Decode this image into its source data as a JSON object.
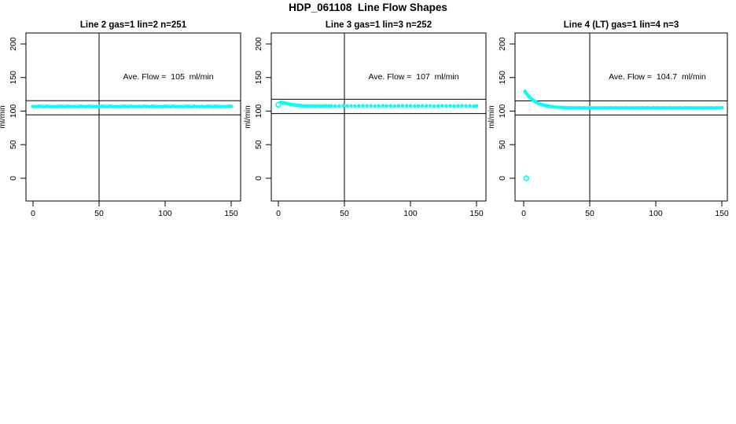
{
  "figure": {
    "title": "HDP_061108  Line Flow Shapes",
    "background": "#ffffff",
    "axis_color": "#000000",
    "accent_color": "#00ffff"
  },
  "chart_data": [
    {
      "type": "scatter",
      "title": "Line 2 gas=1 lin=2 n=251",
      "annotation": "Ave. Flow =  105  ml/min",
      "ave_flow": 105,
      "xlabel": "",
      "ylabel": "ml/min",
      "xlim": [
        0,
        157
      ],
      "ylim": [
        0,
        215
      ],
      "xticks": [
        0,
        50,
        100,
        150
      ],
      "yticks": [
        0,
        50,
        100,
        150,
        200
      ],
      "grid": false,
      "ref_line_x": 50,
      "ref_lines_y": [
        115.5,
        94.5
      ],
      "series": [
        {
          "name": "flow",
          "color": "#00ffff",
          "marker": "dot",
          "points": [
            [
              0,
              107
            ],
            [
              2,
              106.6
            ],
            [
              4,
              107.3
            ],
            [
              6,
              107.1
            ],
            [
              8,
              106.7
            ],
            [
              10,
              107.4
            ],
            [
              12,
              107
            ],
            [
              14,
              106.8
            ],
            [
              16,
              107
            ],
            [
              18,
              106.6
            ],
            [
              20,
              107.3
            ],
            [
              22,
              107.1
            ],
            [
              24,
              106.7
            ],
            [
              26,
              107.4
            ],
            [
              28,
              107
            ],
            [
              30,
              106.8
            ],
            [
              32,
              107
            ],
            [
              34,
              106.6
            ],
            [
              36,
              107.3
            ],
            [
              38,
              107.1
            ],
            [
              40,
              106.7
            ],
            [
              42,
              107.4
            ],
            [
              44,
              107
            ],
            [
              46,
              106.8
            ],
            [
              48,
              107
            ],
            [
              50,
              106.6
            ],
            [
              52,
              107.3
            ],
            [
              54,
              107.1
            ],
            [
              56,
              106.7
            ],
            [
              58,
              107.4
            ],
            [
              60,
              107
            ],
            [
              62,
              106.8
            ],
            [
              64,
              107
            ],
            [
              66,
              106.6
            ],
            [
              68,
              107.3
            ],
            [
              70,
              107.1
            ],
            [
              72,
              106.7
            ],
            [
              74,
              107.4
            ],
            [
              76,
              107
            ],
            [
              78,
              106.8
            ],
            [
              80,
              107
            ],
            [
              82,
              106.6
            ],
            [
              84,
              107.3
            ],
            [
              86,
              107.1
            ],
            [
              88,
              106.7
            ],
            [
              90,
              107.4
            ],
            [
              92,
              107
            ],
            [
              94,
              106.8
            ],
            [
              96,
              107
            ],
            [
              98,
              106.6
            ],
            [
              100,
              107.3
            ],
            [
              102,
              107.1
            ],
            [
              104,
              106.7
            ],
            [
              106,
              107.4
            ],
            [
              108,
              107
            ],
            [
              110,
              106.8
            ],
            [
              112,
              107
            ],
            [
              114,
              106.6
            ],
            [
              116,
              107.3
            ],
            [
              118,
              107.1
            ],
            [
              120,
              106.7
            ],
            [
              122,
              107.4
            ],
            [
              124,
              107
            ],
            [
              126,
              106.8
            ],
            [
              128,
              107
            ],
            [
              130,
              106.6
            ],
            [
              132,
              107.3
            ],
            [
              134,
              107.1
            ],
            [
              136,
              106.7
            ],
            [
              138,
              107.4
            ],
            [
              140,
              107
            ],
            [
              142,
              106.8
            ],
            [
              144,
              107
            ],
            [
              146,
              106.6
            ],
            [
              148,
              107.3
            ],
            [
              150,
              107.1
            ]
          ],
          "open_points": []
        }
      ]
    },
    {
      "type": "scatter",
      "title": "Line 3 gas=1 lin=3 n=252",
      "annotation": "Ave. Flow =  107  ml/min",
      "ave_flow": 107,
      "xlabel": "",
      "ylabel": "ml/min",
      "xlim": [
        0,
        157
      ],
      "ylim": [
        0,
        215
      ],
      "xticks": [
        0,
        50,
        100,
        150
      ],
      "yticks": [
        0,
        50,
        100,
        150,
        200
      ],
      "grid": false,
      "ref_line_x": 50,
      "ref_lines_y": [
        117.7,
        96.3
      ],
      "series": [
        {
          "name": "flow",
          "color": "#00ffff",
          "marker": "dot",
          "points": [
            [
              1,
              112
            ],
            [
              2,
              113
            ],
            [
              3,
              112.6
            ],
            [
              4,
              112.2
            ],
            [
              5,
              111.8
            ],
            [
              6,
              111.4
            ],
            [
              7,
              111
            ],
            [
              8,
              110.6
            ],
            [
              9,
              110.2
            ],
            [
              10,
              109.8
            ],
            [
              11,
              109.5
            ],
            [
              12,
              109.2
            ],
            [
              13,
              108.9
            ],
            [
              14,
              108.7
            ],
            [
              15,
              108.5
            ],
            [
              16,
              108.3
            ],
            [
              17,
              108.1
            ],
            [
              18,
              108
            ],
            [
              20,
              107.8
            ],
            [
              22,
              107.7
            ],
            [
              24,
              107.9
            ],
            [
              26,
              107.6
            ],
            [
              28,
              107.8
            ],
            [
              30,
              107.9
            ],
            [
              32,
              107.6
            ],
            [
              34,
              107.8
            ],
            [
              36,
              108
            ],
            [
              38,
              107.7
            ],
            [
              40,
              107.9
            ],
            [
              43,
              107.6
            ],
            [
              46,
              107.8
            ],
            [
              49,
              108
            ],
            [
              52,
              107.7
            ],
            [
              55,
              107.9
            ],
            [
              58,
              107.6
            ],
            [
              61,
              107.8
            ],
            [
              64,
              108
            ],
            [
              67,
              107.7
            ],
            [
              70,
              107.9
            ],
            [
              73,
              107.6
            ],
            [
              76,
              107.8
            ],
            [
              79,
              108
            ],
            [
              82,
              107.7
            ],
            [
              85,
              107.9
            ],
            [
              88,
              107.6
            ],
            [
              91,
              107.8
            ],
            [
              94,
              108
            ],
            [
              97,
              107.7
            ],
            [
              100,
              107.9
            ],
            [
              103,
              107.6
            ],
            [
              106,
              107.8
            ],
            [
              109,
              108
            ],
            [
              112,
              107.7
            ],
            [
              115,
              107.9
            ],
            [
              118,
              107.6
            ],
            [
              121,
              107.8
            ],
            [
              124,
              108
            ],
            [
              127,
              107.7
            ],
            [
              130,
              107.9
            ],
            [
              133,
              107.6
            ],
            [
              136,
              107.8
            ],
            [
              139,
              108
            ],
            [
              142,
              107.7
            ],
            [
              145,
              107.9
            ],
            [
              148,
              107.6
            ],
            [
              150,
              107.8
            ]
          ],
          "open_points": [
            [
              0,
              109.5
            ]
          ]
        }
      ]
    },
    {
      "type": "scatter",
      "title": "Line 4 (LT) gas=1 lin=4 n=3",
      "annotation": "Ave. Flow =  104.7  ml/min",
      "ave_flow": 104.7,
      "xlabel": "",
      "ylabel": "ml/min",
      "xlim": [
        0,
        157
      ],
      "ylim": [
        0,
        215
      ],
      "xticks": [
        0,
        50,
        100,
        150
      ],
      "yticks": [
        0,
        50,
        100,
        150,
        200
      ],
      "grid": false,
      "ref_line_x": 50,
      "ref_lines_y": [
        115.2,
        94.2
      ],
      "series": [
        {
          "name": "flow",
          "color": "#00ffff",
          "marker": "dot",
          "points": [
            [
              1,
              129.4
            ],
            [
              2,
              126.5
            ],
            [
              3,
              123.9
            ],
            [
              4,
              121.7
            ],
            [
              5,
              119.7
            ],
            [
              6,
              117.9
            ],
            [
              7,
              116.4
            ],
            [
              8,
              115
            ],
            [
              9,
              113.8
            ],
            [
              10,
              112.7
            ],
            [
              11,
              111.8
            ],
            [
              12,
              110.9
            ],
            [
              13,
              110.2
            ],
            [
              14,
              109.6
            ],
            [
              15,
              109
            ],
            [
              16,
              108.5
            ],
            [
              17,
              108
            ],
            [
              18,
              107.7
            ],
            [
              19,
              107.3
            ],
            [
              20,
              107
            ],
            [
              22,
              106.5
            ],
            [
              24,
              106.1
            ],
            [
              26,
              105.8
            ],
            [
              28,
              105.6
            ],
            [
              30,
              105.4
            ],
            [
              32,
              105.2
            ],
            [
              34,
              105.1
            ],
            [
              36,
              105
            ],
            [
              38,
              104.9
            ],
            [
              40,
              104.9
            ],
            [
              42,
              105.1
            ],
            [
              44,
              104.8
            ],
            [
              46,
              105
            ],
            [
              48,
              104.7
            ],
            [
              50,
              105.1
            ],
            [
              52,
              104.8
            ],
            [
              54,
              105
            ],
            [
              56,
              104.7
            ],
            [
              58,
              105.1
            ],
            [
              60,
              104.8
            ],
            [
              62,
              105
            ],
            [
              64,
              104.7
            ],
            [
              66,
              105.1
            ],
            [
              68,
              104.8
            ],
            [
              70,
              105
            ],
            [
              72,
              104.7
            ],
            [
              74,
              105.1
            ],
            [
              76,
              104.8
            ],
            [
              78,
              105
            ],
            [
              80,
              104.7
            ],
            [
              82,
              105.1
            ],
            [
              84,
              104.8
            ],
            [
              86,
              105
            ],
            [
              88,
              104.7
            ],
            [
              90,
              105.1
            ],
            [
              92,
              104.8
            ],
            [
              94,
              105
            ],
            [
              96,
              104.7
            ],
            [
              98,
              105.1
            ],
            [
              100,
              104.8
            ],
            [
              102,
              105
            ],
            [
              104,
              104.7
            ],
            [
              106,
              105.1
            ],
            [
              108,
              104.8
            ],
            [
              110,
              105
            ],
            [
              112,
              104.7
            ],
            [
              114,
              105.1
            ],
            [
              116,
              104.8
            ],
            [
              118,
              105
            ],
            [
              120,
              104.7
            ],
            [
              122,
              105.1
            ],
            [
              124,
              104.8
            ],
            [
              126,
              105
            ],
            [
              128,
              104.7
            ],
            [
              130,
              105.1
            ],
            [
              132,
              104.8
            ],
            [
              134,
              105
            ],
            [
              136,
              104.7
            ],
            [
              138,
              105.1
            ],
            [
              140,
              104.8
            ],
            [
              142,
              105
            ],
            [
              144,
              104.7
            ],
            [
              146,
              105.1
            ],
            [
              148,
              104.8
            ],
            [
              150,
              105
            ]
          ],
          "open_points": [
            [
              2,
              0
            ]
          ]
        }
      ]
    }
  ]
}
